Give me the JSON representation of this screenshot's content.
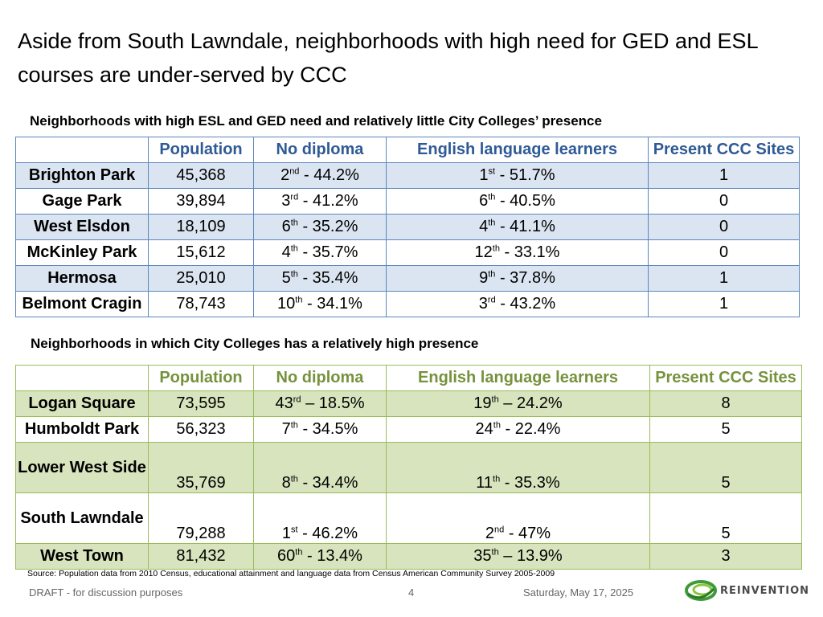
{
  "title": "Aside from South Lawndale, neighborhoods with high need for GED and ESL courses are under-served by CCC",
  "section1": {
    "subtitle": "Neighborhoods with high ESL and GED need and relatively little City Colleges’ presence",
    "headers": [
      "",
      "Population",
      "No diploma",
      "English language learners",
      "Present CCC Sites"
    ],
    "rows": [
      {
        "name": "Brighton Park",
        "population": "45,368",
        "nd_rank": "2",
        "nd_sup": "nd",
        "nd_val": " - 44.2%",
        "el_rank": "1",
        "el_sup": "st",
        "el_val": " - 51.7%",
        "sites": "1"
      },
      {
        "name": "Gage Park",
        "population": "39,894",
        "nd_rank": "3",
        "nd_sup": "rd",
        "nd_val": " - 41.2%",
        "el_rank": "6",
        "el_sup": "th",
        "el_val": " - 40.5%",
        "sites": "0"
      },
      {
        "name": "West Elsdon",
        "population": "18,109",
        "nd_rank": "6",
        "nd_sup": "th",
        "nd_val": " - 35.2%",
        "el_rank": "4",
        "el_sup": "th",
        "el_val": " - 41.1%",
        "sites": "0"
      },
      {
        "name": "McKinley Park",
        "population": "15,612",
        "nd_rank": "4",
        "nd_sup": "th",
        "nd_val": " - 35.7%",
        "el_rank": "12",
        "el_sup": "th",
        "el_val": " - 33.1%",
        "sites": "0"
      },
      {
        "name": "Hermosa",
        "population": "25,010",
        "nd_rank": "5",
        "nd_sup": "th",
        "nd_val": " - 35.4%",
        "el_rank": "9",
        "el_sup": "th",
        "el_val": " - 37.8%",
        "sites": "1"
      },
      {
        "name": "Belmont Cragin",
        "population": "78,743",
        "nd_rank": "10",
        "nd_sup": "th",
        "nd_val": " - 34.1%",
        "el_rank": "3",
        "el_sup": "rd",
        "el_val": " - 43.2%",
        "sites": "1"
      }
    ]
  },
  "section2": {
    "subtitle": "Neighborhoods in which City Colleges has a relatively high presence",
    "headers": [
      "",
      "Population",
      "No diploma",
      "English language learners",
      "Present CCC Sites"
    ],
    "rows": [
      {
        "name": "Logan Square",
        "population": "73,595",
        "nd_rank": "43",
        "nd_sup": "rd",
        "nd_val": " – 18.5%",
        "el_rank": "19",
        "el_sup": "th",
        "el_val": " – 24.2%",
        "sites": "8"
      },
      {
        "name": "Humboldt Park",
        "population": "56,323",
        "nd_rank": "7",
        "nd_sup": "th",
        "nd_val": " - 34.5%",
        "el_rank": "24",
        "el_sup": "th",
        "el_val": " - 22.4%",
        "sites": "5"
      },
      {
        "name": "Lower West Side",
        "population": "35,769",
        "nd_rank": "8",
        "nd_sup": "th",
        "nd_val": " - 34.4%",
        "el_rank": "11",
        "el_sup": "th",
        "el_val": " - 35.3%",
        "sites": "5"
      },
      {
        "name": "South Lawndale",
        "population": "79,288",
        "nd_rank": "1",
        "nd_sup": "st",
        "nd_val": " - 46.2%",
        "el_rank": "2",
        "el_sup": "nd",
        "el_val": " - 47%",
        "sites": "5"
      },
      {
        "name": "West Town",
        "population": "81,432",
        "nd_rank": "60",
        "nd_sup": "th",
        "nd_val": " - 13.4%",
        "el_rank": "35",
        "el_sup": "th",
        "el_val": " – 13.9%",
        "sites": "3"
      }
    ]
  },
  "source": "Source: Population data from 2010 Census, educational attainment and language data from Census American Community Survey 2005-2009",
  "footer": {
    "draft": "DRAFT - for discussion purposes",
    "page": "4",
    "date": "Saturday, May 17, 2025",
    "logo_text": "REINVENTION",
    "logo_icon": "reinvention-swirl-logo"
  },
  "colors": {
    "blue_header": "#2e5a95",
    "blue_border": "#5b86bd",
    "blue_shade": "#dbe5f1",
    "green_header": "#76923c",
    "green_border": "#9bbb59",
    "green_shade": "#d7e4bd"
  }
}
